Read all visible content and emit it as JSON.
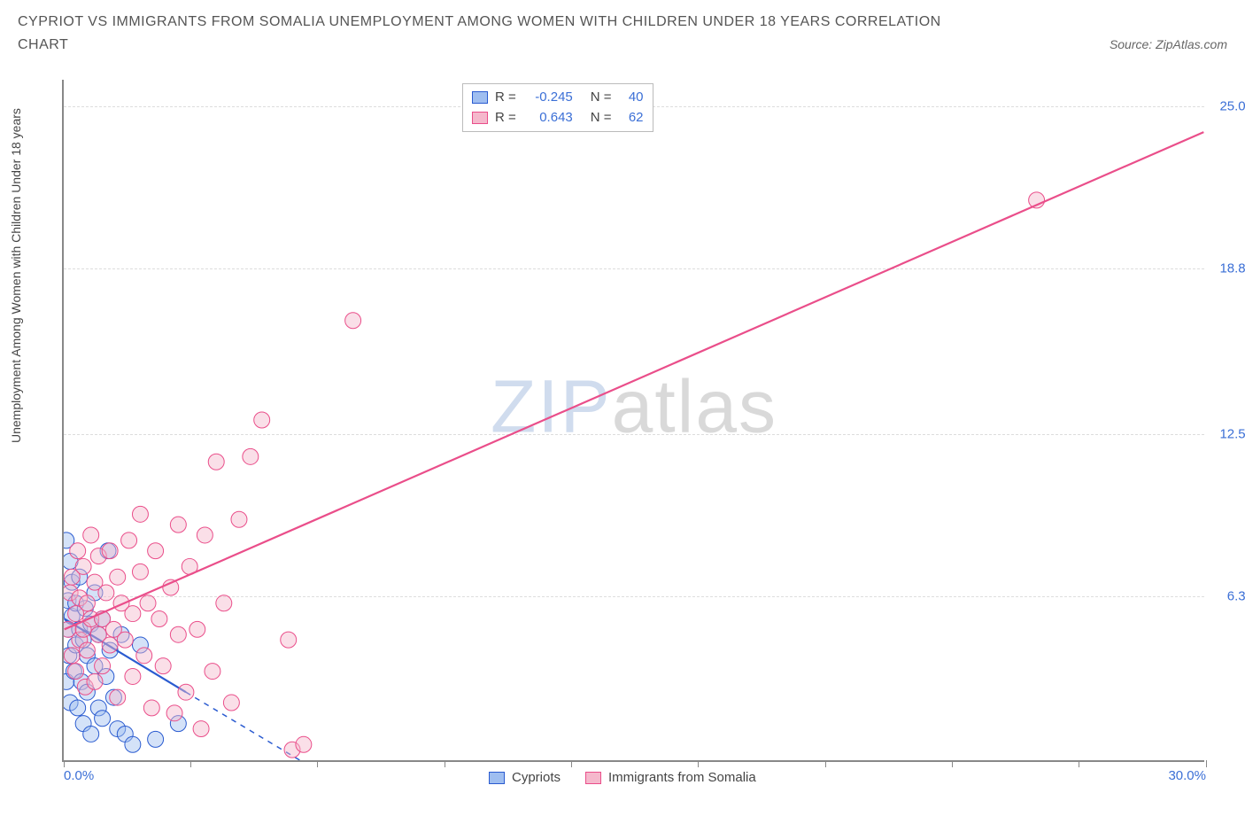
{
  "title": "CYPRIOT VS IMMIGRANTS FROM SOMALIA UNEMPLOYMENT AMONG WOMEN WITH CHILDREN UNDER 18 YEARS CORRELATION CHART",
  "source": "Source: ZipAtlas.com",
  "y_axis_label": "Unemployment Among Women with Children Under 18 years",
  "watermark_a": "ZIP",
  "watermark_b": "atlas",
  "chart": {
    "type": "scatter",
    "xlim": [
      0,
      30
    ],
    "ylim": [
      0,
      26
    ],
    "x_ticks": [
      0,
      3.33,
      6.66,
      10,
      13.33,
      16.66,
      20,
      23.33,
      26.66,
      30
    ],
    "x_tick_labels_shown": {
      "0": "0.0%",
      "30": "30.0%"
    },
    "y_gridlines": [
      6.3,
      12.5,
      18.8,
      25.0
    ],
    "y_tick_labels": [
      "6.3%",
      "12.5%",
      "18.8%",
      "25.0%"
    ],
    "background_color": "#ffffff",
    "grid_color": "#dddddd",
    "axis_color": "#888888",
    "tick_label_color": "#3b6fd6",
    "marker_radius": 9,
    "marker_opacity": 0.45,
    "line_width": 2.2,
    "series": [
      {
        "name": "Cypriots",
        "color_fill": "#9fbef0",
        "color_stroke": "#2a5bd0",
        "r_value": "-0.245",
        "n_value": "40",
        "trend_solid": {
          "x1": 0,
          "y1": 5.4,
          "x2": 3.2,
          "y2": 2.6
        },
        "trend_dash": {
          "x1": 3.2,
          "y1": 2.6,
          "x2": 6.2,
          "y2": 0.0
        },
        "points": [
          [
            0.05,
            8.4
          ],
          [
            0.05,
            3.0
          ],
          [
            0.1,
            5.0
          ],
          [
            0.1,
            6.1
          ],
          [
            0.12,
            4.0
          ],
          [
            0.15,
            7.6
          ],
          [
            0.15,
            2.2
          ],
          [
            0.2,
            5.5
          ],
          [
            0.2,
            6.8
          ],
          [
            0.25,
            3.4
          ],
          [
            0.3,
            4.4
          ],
          [
            0.3,
            6.0
          ],
          [
            0.35,
            2.0
          ],
          [
            0.4,
            5.0
          ],
          [
            0.4,
            7.0
          ],
          [
            0.45,
            3.0
          ],
          [
            0.5,
            4.6
          ],
          [
            0.5,
            1.4
          ],
          [
            0.55,
            5.8
          ],
          [
            0.6,
            2.6
          ],
          [
            0.6,
            4.0
          ],
          [
            0.7,
            5.2
          ],
          [
            0.7,
            1.0
          ],
          [
            0.8,
            3.6
          ],
          [
            0.8,
            6.4
          ],
          [
            0.9,
            2.0
          ],
          [
            0.9,
            4.8
          ],
          [
            1.0,
            5.4
          ],
          [
            1.0,
            1.6
          ],
          [
            1.1,
            3.2
          ],
          [
            1.15,
            8.0
          ],
          [
            1.2,
            4.2
          ],
          [
            1.3,
            2.4
          ],
          [
            1.4,
            1.2
          ],
          [
            1.5,
            4.8
          ],
          [
            1.6,
            1.0
          ],
          [
            1.8,
            0.6
          ],
          [
            2.0,
            4.4
          ],
          [
            2.4,
            0.8
          ],
          [
            3.0,
            1.4
          ]
        ]
      },
      {
        "name": "Immigrants from Somalia",
        "color_fill": "#f5b8cc",
        "color_stroke": "#ea4e8a",
        "r_value": "0.643",
        "n_value": "62",
        "trend_solid": {
          "x1": 0,
          "y1": 5.0,
          "x2": 30,
          "y2": 24.0
        },
        "trend_dash": null,
        "points": [
          [
            0.1,
            5.0
          ],
          [
            0.15,
            6.4
          ],
          [
            0.2,
            4.0
          ],
          [
            0.2,
            7.0
          ],
          [
            0.3,
            5.6
          ],
          [
            0.3,
            3.4
          ],
          [
            0.35,
            8.0
          ],
          [
            0.4,
            4.6
          ],
          [
            0.4,
            6.2
          ],
          [
            0.5,
            5.0
          ],
          [
            0.5,
            7.4
          ],
          [
            0.55,
            2.8
          ],
          [
            0.6,
            6.0
          ],
          [
            0.6,
            4.2
          ],
          [
            0.7,
            8.6
          ],
          [
            0.7,
            5.4
          ],
          [
            0.8,
            3.0
          ],
          [
            0.8,
            6.8
          ],
          [
            0.9,
            4.8
          ],
          [
            0.9,
            7.8
          ],
          [
            1.0,
            5.4
          ],
          [
            1.0,
            3.6
          ],
          [
            1.1,
            6.4
          ],
          [
            1.2,
            4.4
          ],
          [
            1.2,
            8.0
          ],
          [
            1.3,
            5.0
          ],
          [
            1.4,
            7.0
          ],
          [
            1.4,
            2.4
          ],
          [
            1.5,
            6.0
          ],
          [
            1.6,
            4.6
          ],
          [
            1.7,
            8.4
          ],
          [
            1.8,
            3.2
          ],
          [
            1.8,
            5.6
          ],
          [
            2.0,
            7.2
          ],
          [
            2.0,
            9.4
          ],
          [
            2.1,
            4.0
          ],
          [
            2.2,
            6.0
          ],
          [
            2.3,
            2.0
          ],
          [
            2.4,
            8.0
          ],
          [
            2.5,
            5.4
          ],
          [
            2.6,
            3.6
          ],
          [
            2.8,
            6.6
          ],
          [
            2.9,
            1.8
          ],
          [
            3.0,
            4.8
          ],
          [
            3.0,
            9.0
          ],
          [
            3.2,
            2.6
          ],
          [
            3.3,
            7.4
          ],
          [
            3.5,
            5.0
          ],
          [
            3.6,
            1.2
          ],
          [
            3.7,
            8.6
          ],
          [
            3.9,
            3.4
          ],
          [
            4.0,
            11.4
          ],
          [
            4.2,
            6.0
          ],
          [
            4.4,
            2.2
          ],
          [
            4.6,
            9.2
          ],
          [
            4.9,
            11.6
          ],
          [
            5.2,
            13.0
          ],
          [
            5.9,
            4.6
          ],
          [
            6.0,
            0.4
          ],
          [
            6.3,
            0.6
          ],
          [
            7.6,
            16.8
          ],
          [
            25.6,
            21.4
          ]
        ]
      }
    ]
  },
  "r_legend_label_r": "R =",
  "r_legend_label_n": "N ="
}
